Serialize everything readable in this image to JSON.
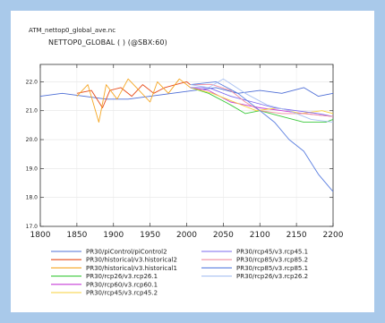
{
  "figure": {
    "file_title": "ATM_nettop0_global_ave.nc",
    "plot_title": "NETTOP0_GLOBAL ( ) (@SBX:60)"
  },
  "chart_data": {
    "type": "line",
    "title": "NETTOP0_GLOBAL ( ) (@SBX:60)",
    "xlabel": "",
    "ylabel": "",
    "xlim": [
      1800,
      2200
    ],
    "ylim": [
      17.0,
      22.6
    ],
    "x_ticks": [
      1800,
      1850,
      1900,
      1950,
      2000,
      2050,
      2100,
      2150,
      2200
    ],
    "y_ticks": [
      17.0,
      18.0,
      19.0,
      20.0,
      21.0,
      22.0
    ],
    "y_tick_labels": [
      "17.0",
      "18.0",
      "19.0",
      "20.0",
      "21.0",
      "22.0"
    ],
    "grid": true,
    "legend_position": "bottom",
    "series": [
      {
        "name": "PR30/piControl/piControl2",
        "color": "#4f6fd6",
        "points": [
          [
            1800,
            21.5
          ],
          [
            1830,
            21.6
          ],
          [
            1860,
            21.5
          ],
          [
            1890,
            21.4
          ],
          [
            1920,
            21.4
          ],
          [
            1950,
            21.5
          ],
          [
            1980,
            21.6
          ],
          [
            2010,
            21.7
          ],
          [
            2040,
            21.8
          ],
          [
            2070,
            21.6
          ],
          [
            2100,
            21.7
          ],
          [
            2130,
            21.6
          ],
          [
            2160,
            21.8
          ],
          [
            2180,
            21.5
          ],
          [
            2200,
            21.6
          ]
        ]
      },
      {
        "name": "PR30/historical/v3.historical2",
        "color": "#e64a19",
        "points": [
          [
            1850,
            21.6
          ],
          [
            1870,
            21.7
          ],
          [
            1885,
            21.1
          ],
          [
            1895,
            21.7
          ],
          [
            1910,
            21.8
          ],
          [
            1925,
            21.5
          ],
          [
            1940,
            21.9
          ],
          [
            1955,
            21.6
          ],
          [
            1970,
            21.8
          ],
          [
            1985,
            21.9
          ],
          [
            2000,
            22.0
          ],
          [
            2005,
            21.9
          ]
        ]
      },
      {
        "name": "PR30/historical/v3.historical1",
        "color": "#f5a623",
        "points": [
          [
            1850,
            21.5
          ],
          [
            1865,
            21.9
          ],
          [
            1880,
            20.6
          ],
          [
            1890,
            21.9
          ],
          [
            1905,
            21.4
          ],
          [
            1920,
            22.1
          ],
          [
            1935,
            21.7
          ],
          [
            1950,
            21.3
          ],
          [
            1960,
            22.0
          ],
          [
            1975,
            21.6
          ],
          [
            1990,
            22.1
          ],
          [
            2005,
            21.8
          ]
        ]
      },
      {
        "name": "PR30/rcp26/v3.rcp26.1",
        "color": "#3cc93c",
        "points": [
          [
            2005,
            21.8
          ],
          [
            2030,
            21.6
          ],
          [
            2060,
            21.2
          ],
          [
            2080,
            20.9
          ],
          [
            2100,
            21.0
          ],
          [
            2130,
            20.8
          ],
          [
            2160,
            20.6
          ],
          [
            2190,
            20.6
          ],
          [
            2200,
            20.7
          ]
        ]
      },
      {
        "name": "PR30/rcp60/v3.rcp60.1",
        "color": "#c63bd6",
        "points": [
          [
            2005,
            21.8
          ],
          [
            2030,
            21.7
          ],
          [
            2060,
            21.3
          ],
          [
            2080,
            21.2
          ],
          [
            2100,
            21.1
          ],
          [
            2130,
            21.0
          ],
          [
            2160,
            20.9
          ],
          [
            2200,
            20.8
          ]
        ]
      },
      {
        "name": "PR30/rcp45/v3.rcp45.2",
        "color": "#f7d23a",
        "points": [
          [
            2005,
            21.8
          ],
          [
            2035,
            21.6
          ],
          [
            2065,
            21.3
          ],
          [
            2095,
            21.0
          ],
          [
            2125,
            21.1
          ],
          [
            2155,
            20.9
          ],
          [
            2185,
            21.0
          ],
          [
            2200,
            20.9
          ]
        ]
      },
      {
        "name": "PR30/rcp45/v3.rcp45.1",
        "color": "#7b68ee",
        "points": [
          [
            2005,
            21.8
          ],
          [
            2030,
            21.8
          ],
          [
            2060,
            21.5
          ],
          [
            2090,
            21.3
          ],
          [
            2120,
            21.1
          ],
          [
            2150,
            21.0
          ],
          [
            2180,
            20.9
          ],
          [
            2200,
            20.8
          ]
        ]
      },
      {
        "name": "PR30/rcp85/v3.rcp85.2",
        "color": "#f08fa0",
        "points": [
          [
            2005,
            21.9
          ],
          [
            2035,
            21.9
          ],
          [
            2060,
            21.7
          ],
          [
            2080,
            21.3
          ],
          [
            2100,
            21.0
          ],
          [
            2130,
            20.9
          ],
          [
            2160,
            20.9
          ],
          [
            2200,
            20.8
          ]
        ]
      },
      {
        "name": "PR30/rcp85/v3.rcp85.1",
        "color": "#5b7fe0",
        "points": [
          [
            2005,
            21.9
          ],
          [
            2040,
            22.0
          ],
          [
            2070,
            21.6
          ],
          [
            2100,
            21.0
          ],
          [
            2120,
            20.6
          ],
          [
            2140,
            20.0
          ],
          [
            2160,
            19.6
          ],
          [
            2180,
            18.8
          ],
          [
            2200,
            18.2
          ]
        ]
      },
      {
        "name": "PR30/rcp26/v3.rcp26.2",
        "color": "#a9c1f2",
        "points": [
          [
            2005,
            21.9
          ],
          [
            2030,
            21.8
          ],
          [
            2050,
            22.1
          ],
          [
            2080,
            21.6
          ],
          [
            2110,
            21.2
          ],
          [
            2140,
            21.0
          ],
          [
            2170,
            20.7
          ],
          [
            2200,
            20.6
          ]
        ]
      }
    ]
  }
}
